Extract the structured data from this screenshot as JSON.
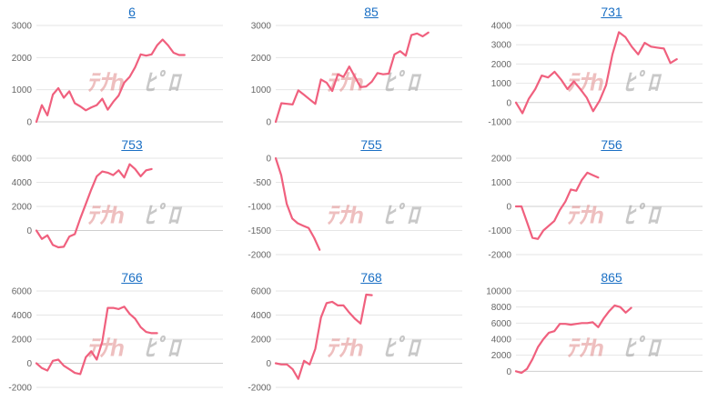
{
  "watermark": {
    "left": "ﾃﾅh",
    "right": "ﾋﾟﾛ"
  },
  "colors": {
    "line": "#f0607e",
    "grid": "#e6e6e6",
    "axis": "#cfcfcf",
    "tick": "#666666",
    "title": "#1a6fc4",
    "wm_left": "#e08a8a",
    "wm_right": "#9a9a9a"
  },
  "chart_data": [
    {
      "type": "line",
      "title": "6",
      "ylim": [
        0,
        3000
      ],
      "yticks": [
        0,
        1000,
        2000,
        3000
      ],
      "n": 35,
      "values": [
        0,
        520,
        200,
        850,
        1050,
        750,
        950,
        580,
        480,
        360,
        450,
        520,
        720,
        380,
        620,
        820,
        1220,
        1400,
        1700,
        2100,
        2060,
        2100,
        2380,
        2560,
        2380,
        2150,
        2080,
        2080
      ]
    },
    {
      "type": "line",
      "title": "85",
      "ylim": [
        0,
        3000
      ],
      "yticks": [
        0,
        1000,
        2000,
        3000
      ],
      "n": 34,
      "values": [
        0,
        580,
        560,
        540,
        980,
        840,
        700,
        560,
        1320,
        1220,
        960,
        1480,
        1400,
        1720,
        1400,
        1080,
        1100,
        1250,
        1520,
        1480,
        1500,
        2100,
        2200,
        2060,
        2700,
        2750,
        2660,
        2780
      ]
    },
    {
      "type": "line",
      "title": "731",
      "ylim": [
        -1000,
        4000
      ],
      "yticks": [
        -1000,
        0,
        1000,
        2000,
        3000,
        4000
      ],
      "n": 30,
      "values": [
        0,
        -550,
        200,
        700,
        1400,
        1300,
        1600,
        1200,
        700,
        1100,
        700,
        250,
        -450,
        100,
        900,
        2500,
        3650,
        3400,
        2900,
        2500,
        3100,
        2900,
        2850,
        2800,
        2050,
        2250
      ]
    },
    {
      "type": "line",
      "title": "753",
      "ylim": [
        -2000,
        6000
      ],
      "yticks": [
        0,
        2000,
        4000,
        6000
      ],
      "n": 35,
      "values": [
        0,
        -700,
        -400,
        -1200,
        -1400,
        -1350,
        -500,
        -300,
        1000,
        2200,
        3400,
        4500,
        4900,
        4800,
        4600,
        5000,
        4400,
        5500,
        5100,
        4500,
        5000,
        5100
      ]
    },
    {
      "type": "line",
      "title": "755",
      "ylim": [
        -2000,
        0
      ],
      "yticks": [
        -2000,
        -1500,
        -1000,
        -500,
        0
      ],
      "n": 35,
      "values": [
        0,
        -350,
        -950,
        -1250,
        -1350,
        -1400,
        -1450,
        -1650,
        -1900
      ]
    },
    {
      "type": "line",
      "title": "756",
      "ylim": [
        -2000,
        2000
      ],
      "yticks": [
        -2000,
        -1000,
        0,
        1000,
        2000
      ],
      "n": 35,
      "values": [
        0,
        0,
        -650,
        -1300,
        -1350,
        -1000,
        -800,
        -600,
        -150,
        200,
        700,
        650,
        1100,
        1400,
        1300,
        1200
      ]
    },
    {
      "type": "line",
      "title": "766",
      "ylim": [
        -2000,
        6000
      ],
      "yticks": [
        -2000,
        0,
        2000,
        4000,
        6000
      ],
      "n": 35,
      "values": [
        0,
        -400,
        -600,
        200,
        300,
        -200,
        -500,
        -800,
        -900,
        500,
        1000,
        300,
        1800,
        4600,
        4600,
        4500,
        4700,
        4100,
        3700,
        3000,
        2600,
        2500,
        2500
      ]
    },
    {
      "type": "line",
      "title": "768",
      "ylim": [
        -2000,
        6000
      ],
      "yticks": [
        -2000,
        0,
        2000,
        4000,
        6000
      ],
      "n": 34,
      "values": [
        0,
        -100,
        -100,
        -500,
        -1300,
        200,
        -100,
        1200,
        3800,
        5000,
        5100,
        4800,
        4800,
        4200,
        3700,
        3300,
        5700,
        5650
      ]
    },
    {
      "type": "line",
      "title": "865",
      "ylim": [
        -2000,
        10000
      ],
      "yticks": [
        0,
        2000,
        4000,
        6000,
        8000,
        10000
      ],
      "n": 35,
      "values": [
        0,
        -200,
        300,
        1500,
        3000,
        4000,
        4800,
        5000,
        5900,
        5900,
        5800,
        5900,
        6000,
        6000,
        6100,
        5500,
        6600,
        7500,
        8200,
        8000,
        7300,
        7900
      ]
    }
  ]
}
